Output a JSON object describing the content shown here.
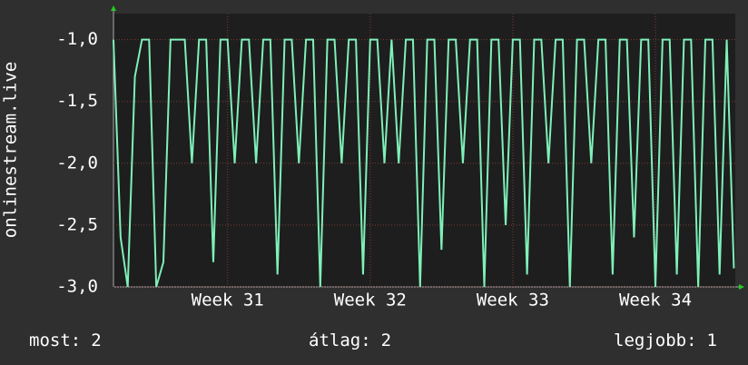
{
  "chart_data": {
    "type": "line",
    "y_label": "onlinestream.live",
    "x": [
      30.2,
      30.25,
      30.3,
      30.35,
      30.4,
      30.45,
      30.5,
      30.55,
      30.6,
      30.65,
      30.7,
      30.75,
      30.8,
      30.85,
      30.9,
      30.95,
      31.0,
      31.05,
      31.1,
      31.15,
      31.2,
      31.25,
      31.3,
      31.35,
      31.4,
      31.45,
      31.5,
      31.55,
      31.6,
      31.65,
      31.7,
      31.75,
      31.8,
      31.85,
      31.9,
      31.95,
      32.0,
      32.05,
      32.1,
      32.15,
      32.2,
      32.25,
      32.3,
      32.35,
      32.4,
      32.45,
      32.5,
      32.55,
      32.6,
      32.65,
      32.7,
      32.75,
      32.8,
      32.85,
      32.9,
      32.95,
      33.0,
      33.05,
      33.1,
      33.15,
      33.2,
      33.25,
      33.3,
      33.35,
      33.4,
      33.45,
      33.5,
      33.55,
      33.6,
      33.65,
      33.7,
      33.75,
      33.8,
      33.85,
      33.9,
      33.95,
      34.0,
      34.05,
      34.1,
      34.15,
      34.2,
      34.25,
      34.3,
      34.35,
      34.4,
      34.45,
      34.5,
      34.55
    ],
    "series": [
      {
        "name": "onlinestream.live",
        "color": "#7ef0b8",
        "values": [
          -1.0,
          -2.6,
          -3.0,
          -1.3,
          -1.0,
          -1.0,
          -3.0,
          -2.8,
          -1.0,
          -1.0,
          -1.0,
          -2.0,
          -1.0,
          -1.0,
          -2.8,
          -1.0,
          -1.0,
          -2.0,
          -1.0,
          -1.0,
          -2.0,
          -1.0,
          -1.0,
          -2.9,
          -1.0,
          -1.0,
          -2.0,
          -1.0,
          -1.0,
          -3.0,
          -1.0,
          -1.0,
          -2.0,
          -1.0,
          -1.0,
          -2.9,
          -1.0,
          -1.0,
          -2.0,
          -1.0,
          -2.0,
          -1.0,
          -1.0,
          -3.0,
          -1.0,
          -1.0,
          -2.7,
          -1.0,
          -1.0,
          -2.0,
          -1.0,
          -1.0,
          -3.0,
          -1.0,
          -1.0,
          -2.5,
          -1.0,
          -1.0,
          -2.9,
          -1.0,
          -1.0,
          -2.0,
          -1.0,
          -1.0,
          -3.0,
          -1.0,
          -1.0,
          -2.0,
          -1.0,
          -1.0,
          -2.9,
          -1.0,
          -1.0,
          -2.6,
          -1.0,
          -1.0,
          -3.0,
          -1.0,
          -1.0,
          -2.9,
          -1.0,
          -1.0,
          -3.0,
          -1.0,
          -1.0,
          -2.9,
          -1.0,
          -2.85
        ]
      }
    ],
    "xlim": [
      30.2,
      34.56
    ],
    "xticks": [
      {
        "value": 31,
        "label": "Week 31"
      },
      {
        "value": 32,
        "label": "Week 32"
      },
      {
        "value": 33,
        "label": "Week 33"
      },
      {
        "value": 34,
        "label": "Week 34"
      }
    ],
    "ylim": [
      -3.0,
      -0.79
    ],
    "yticks": [
      {
        "value": -3.0,
        "label": "-3,0"
      },
      {
        "value": -2.5,
        "label": "-2,5"
      },
      {
        "value": -2.0,
        "label": "-2,0"
      },
      {
        "value": -1.5,
        "label": "-1,5"
      },
      {
        "value": -1.0,
        "label": "-1,0"
      }
    ],
    "grid": true,
    "legend": [
      {
        "label": "most:",
        "value": 2
      },
      {
        "label": "átlag:",
        "value": 2
      },
      {
        "label": "legjobb:",
        "value": 1
      }
    ]
  }
}
